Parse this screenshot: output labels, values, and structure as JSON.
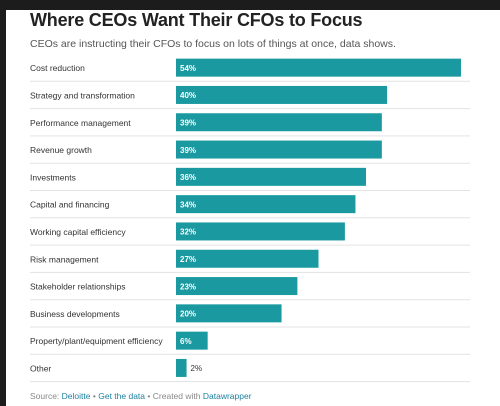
{
  "title": "Where CEOs Want Their CFOs to Focus",
  "subtitle": "CEOs are instructing their CFOs to focus on lots of things at once, data shows.",
  "footer": {
    "source_label": "Source:",
    "source_link": "Deloitte",
    "sep1": "•",
    "data_link": "Get the data",
    "sep2": "•",
    "created_label": "Created with",
    "tool_link": "Datawrapper"
  },
  "colors": {
    "bar": "#1a9aa0",
    "grid": "#e3e3e3"
  },
  "chart_data": {
    "type": "bar",
    "orientation": "horizontal",
    "categories": [
      "Cost reduction",
      "Strategy and transformation",
      "Performance management",
      "Revenue growth",
      "Investments",
      "Capital and financing",
      "Working capital efficiency",
      "Risk management",
      "Stakeholder relationships",
      "Business developments",
      "Property/plant/equipment efficiency",
      "Other"
    ],
    "values": [
      54,
      40,
      39,
      39,
      36,
      34,
      32,
      27,
      23,
      20,
      6,
      2
    ],
    "value_labels": [
      "54%",
      "40%",
      "39%",
      "39%",
      "36%",
      "34%",
      "32%",
      "27%",
      "23%",
      "20%",
      "6%",
      "2%"
    ],
    "xlim": [
      0,
      54
    ],
    "title": "Where CEOs Want Their CFOs to Focus",
    "xlabel": "",
    "ylabel": ""
  }
}
